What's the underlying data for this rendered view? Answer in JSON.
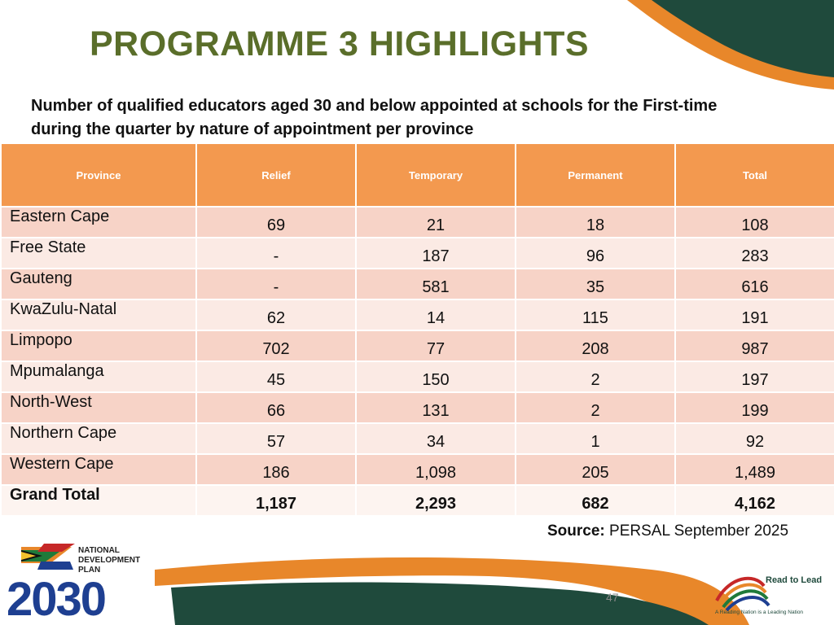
{
  "slide": {
    "title": "PROGRAMME 3 HIGHLIGHTS",
    "subtitle": "Number of qualified educators aged 30 and below appointed at schools for the First-time during the quarter by nature of appointment per province",
    "page_number": "47",
    "colors": {
      "title": "#5a6e2a",
      "header": "#f3994f",
      "row_dark": "#f7d3c7",
      "row_light": "#fbeae4",
      "deco_orange": "#e8872a",
      "deco_green": "#1f4a3c"
    }
  },
  "table": {
    "headers": [
      "Province",
      "Relief",
      "Temporary",
      "Permanent",
      "Total"
    ],
    "rows": [
      [
        "Eastern Cape",
        "69",
        "21",
        "18",
        "108"
      ],
      [
        "Free State",
        "-",
        "187",
        "96",
        "283"
      ],
      [
        "Gauteng",
        "-",
        "581",
        "35",
        "616"
      ],
      [
        "KwaZulu-Natal",
        "62",
        "14",
        "115",
        "191"
      ],
      [
        "Limpopo",
        "702",
        "77",
        "208",
        "987"
      ],
      [
        "Mpumalanga",
        "45",
        "150",
        "2",
        "197"
      ],
      [
        "North-West",
        "66",
        "131",
        "2",
        "199"
      ],
      [
        "Northern Cape",
        "57",
        "34",
        "1",
        "92"
      ],
      [
        "Western Cape",
        "186",
        "1,098",
        "205",
        "1,489"
      ]
    ],
    "total": [
      "Grand Total",
      "1,187",
      "2,293",
      "682",
      "4,162"
    ]
  },
  "source": {
    "label": "Source:",
    "text": " PERSAL September 2025"
  },
  "logos": {
    "ndp": {
      "line1": "NATIONAL",
      "line2": "DEVELOPMENT",
      "line3": "PLAN",
      "year": "2030"
    },
    "read_to_lead": {
      "title": "Read to Lead",
      "tagline": "A Reading Nation is a Leading Nation"
    }
  }
}
